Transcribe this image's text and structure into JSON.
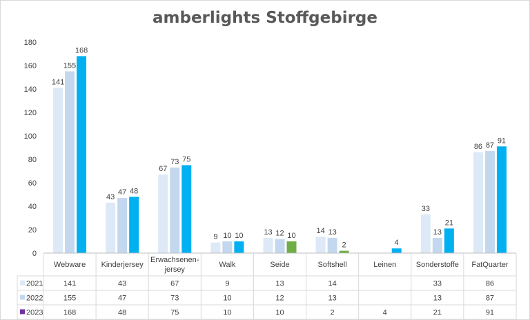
{
  "chart_data": {
    "type": "bar",
    "title": "amberlights Stoffgebirge",
    "categories": [
      "Webware",
      "Kinderjersey",
      "Erwachsenen-jersey",
      "Walk",
      "Seide",
      "Softshell",
      "Leinen",
      "Sonderstoffe",
      "FatQuarter"
    ],
    "category_lines": [
      [
        "Webware"
      ],
      [
        "Kinderjersey"
      ],
      [
        "Erwachsenen-",
        "jersey"
      ],
      [
        "Walk"
      ],
      [
        "Seide"
      ],
      [
        "Softshell"
      ],
      [
        "Leinen"
      ],
      [
        "Sonderstoffe"
      ],
      [
        "FatQuarter"
      ]
    ],
    "ylim": [
      0,
      180
    ],
    "yticks": [
      0,
      20,
      40,
      60,
      80,
      100,
      120,
      140,
      160,
      180
    ],
    "grid": false,
    "legend": "data-table",
    "series": [
      {
        "name": "2021",
        "color": "#dde9f7",
        "values": [
          141,
          43,
          67,
          9,
          13,
          14,
          null,
          33,
          86
        ]
      },
      {
        "name": "2022",
        "color": "#c3d7ee",
        "values": [
          155,
          47,
          73,
          10,
          12,
          13,
          null,
          13,
          87
        ]
      },
      {
        "name": "2023",
        "color": "#00b0f0",
        "values": [
          168,
          48,
          75,
          10,
          10,
          2,
          4,
          21,
          91
        ]
      }
    ],
    "bar_color_overrides": [
      {
        "series": 2,
        "index": 4,
        "color": "#70ad47"
      },
      {
        "series": 2,
        "index": 5,
        "color": "#70ad47"
      }
    ],
    "legend_key_colors": [
      "#dde9f7",
      "#c3d7ee",
      "#7030a0"
    ]
  }
}
